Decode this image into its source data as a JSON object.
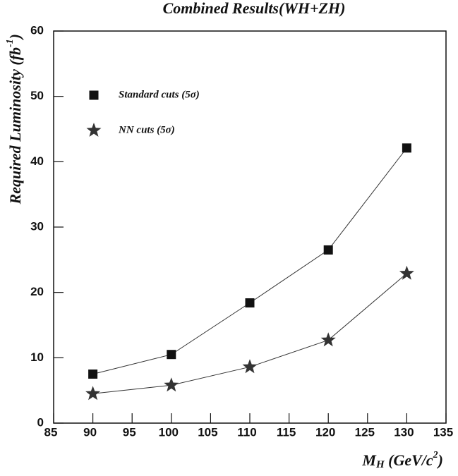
{
  "chart_data": {
    "type": "line",
    "title": "Combined Results(WH+ZH)",
    "x_label": [
      "M",
      "H",
      " (GeV/c",
      "2",
      ")"
    ],
    "y_label": [
      "Required Luminosity (fb",
      "-1",
      ")"
    ],
    "x": [
      90,
      100,
      110,
      120,
      130
    ],
    "series": [
      {
        "name": "Standard cuts (5σ)",
        "marker": "square",
        "color": "#111111",
        "values": [
          7.5,
          10.5,
          18.4,
          26.5,
          42.1
        ]
      },
      {
        "name": "NN cuts (5σ)",
        "marker": "star",
        "color": "#333333",
        "values": [
          4.5,
          5.8,
          8.6,
          12.7,
          22.9
        ]
      }
    ],
    "xlim": [
      85,
      135
    ],
    "xticks": [
      85,
      90,
      95,
      100,
      105,
      110,
      115,
      120,
      125,
      130,
      135
    ],
    "ylim": [
      0,
      60
    ],
    "yticks": [
      0,
      10,
      20,
      30,
      40,
      50,
      60
    ],
    "legend": "upper left",
    "grid": false
  }
}
